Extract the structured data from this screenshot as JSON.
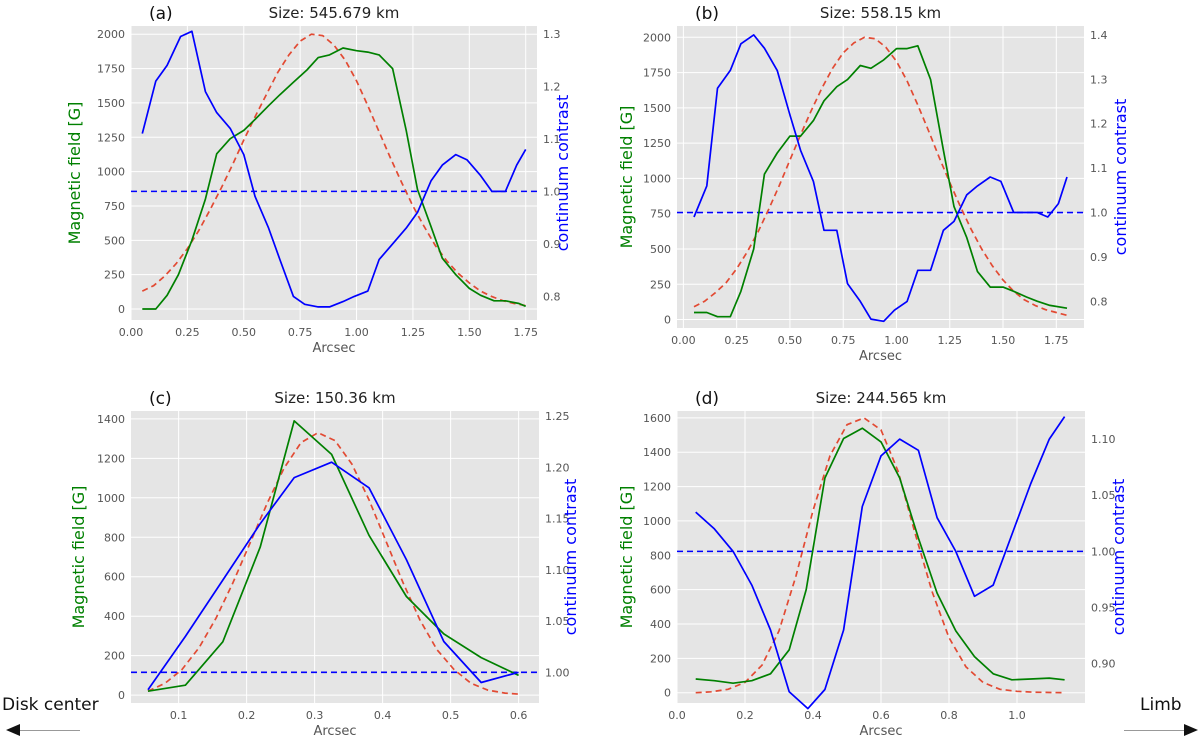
{
  "colors": {
    "magnetic": "#008000",
    "contrast": "#0000ff",
    "fit": "#e24a33",
    "reference": "#0000ff",
    "plot_bg": "#e5e5e5",
    "grid": "#ffffff"
  },
  "side_labels": {
    "left": "Disk center",
    "right": "Limb"
  },
  "chart_data": [
    {
      "panel_label": "(a)",
      "type": "line",
      "title": "Size: 545.679 km",
      "xlabel": "Arcsec",
      "ylabel_left": "Magnetic field [G]",
      "ylabel_right": "continuum contrast",
      "xlim": [
        0.0,
        1.8
      ],
      "ylim_left": [
        -80,
        2060
      ],
      "ylim_right": [
        0.755,
        1.315
      ],
      "xticks": [
        0.0,
        0.25,
        0.5,
        0.75,
        1.0,
        1.25,
        1.5,
        1.75
      ],
      "xtick_labels": [
        "0.00",
        "0.25",
        "0.50",
        "0.75",
        "1.00",
        "1.25",
        "1.50",
        "1.75"
      ],
      "yticks_left": [
        0,
        250,
        500,
        750,
        1000,
        1250,
        1500,
        1750,
        2000
      ],
      "yticks_right": [
        0.8,
        0.9,
        1.0,
        1.1,
        1.2,
        1.3
      ],
      "ytick_labels_right": [
        "0.8",
        "0.9",
        "1.0",
        "1.1",
        "1.2",
        "1.3"
      ],
      "reference_line": 1.0,
      "series": [
        {
          "axis": "left",
          "style": "solid",
          "color": "#008000",
          "x": [
            0.05,
            0.11,
            0.16,
            0.21,
            0.27,
            0.33,
            0.38,
            0.44,
            0.5,
            0.55,
            0.61,
            0.66,
            0.72,
            0.78,
            0.83,
            0.88,
            0.94,
            1.0,
            1.05,
            1.1,
            1.16,
            1.22,
            1.27,
            1.33,
            1.38,
            1.44,
            1.5,
            1.55,
            1.61,
            1.66,
            1.72,
            1.75
          ],
          "y": [
            0,
            0,
            100,
            250,
            500,
            800,
            1130,
            1240,
            1300,
            1380,
            1480,
            1560,
            1650,
            1740,
            1830,
            1850,
            1900,
            1880,
            1870,
            1850,
            1750,
            1300,
            870,
            600,
            370,
            250,
            150,
            100,
            60,
            60,
            40,
            20
          ]
        },
        {
          "axis": "left",
          "style": "dashed",
          "color": "#e24a33",
          "x": [
            0.05,
            0.1,
            0.15,
            0.2,
            0.25,
            0.3,
            0.35,
            0.4,
            0.45,
            0.5,
            0.55,
            0.6,
            0.65,
            0.7,
            0.75,
            0.8,
            0.85,
            0.9,
            0.95,
            1.0,
            1.05,
            1.1,
            1.15,
            1.2,
            1.25,
            1.3,
            1.35,
            1.4,
            1.45,
            1.5,
            1.55,
            1.6,
            1.65,
            1.7,
            1.75
          ],
          "y": [
            130,
            170,
            240,
            330,
            440,
            570,
            720,
            880,
            1050,
            1230,
            1400,
            1560,
            1720,
            1850,
            1950,
            2000,
            1990,
            1920,
            1810,
            1660,
            1480,
            1290,
            1100,
            920,
            750,
            600,
            460,
            350,
            260,
            190,
            130,
            90,
            60,
            40,
            25
          ]
        },
        {
          "axis": "right",
          "style": "solid",
          "color": "#0000ff",
          "x": [
            0.05,
            0.11,
            0.16,
            0.22,
            0.27,
            0.33,
            0.38,
            0.44,
            0.5,
            0.55,
            0.61,
            0.66,
            0.72,
            0.77,
            0.83,
            0.88,
            0.94,
            0.99,
            1.05,
            1.1,
            1.16,
            1.22,
            1.27,
            1.33,
            1.38,
            1.44,
            1.49,
            1.55,
            1.6,
            1.66,
            1.71,
            1.75
          ],
          "y": [
            1.11,
            1.21,
            1.24,
            1.295,
            1.305,
            1.19,
            1.15,
            1.12,
            1.07,
            0.99,
            0.93,
            0.87,
            0.8,
            0.785,
            0.78,
            0.78,
            0.79,
            0.8,
            0.81,
            0.87,
            0.9,
            0.93,
            0.96,
            1.02,
            1.05,
            1.07,
            1.06,
            1.03,
            1.0,
            1.0,
            1.05,
            1.08
          ]
        }
      ]
    },
    {
      "panel_label": "(b)",
      "type": "line",
      "title": "Size: 558.15 km",
      "xlabel": "Arcsec",
      "ylabel_left": "Magnetic field [G]",
      "ylabel_right": "continuum contrast",
      "xlim": [
        -0.03,
        1.88
      ],
      "ylim_left": [
        -60,
        2080
      ],
      "ylim_right": [
        0.74,
        1.42
      ],
      "xticks": [
        0.0,
        0.25,
        0.5,
        0.75,
        1.0,
        1.25,
        1.5,
        1.75
      ],
      "xtick_labels": [
        "0.00",
        "0.25",
        "0.50",
        "0.75",
        "1.00",
        "1.25",
        "1.50",
        "1.75"
      ],
      "yticks_left": [
        0,
        250,
        500,
        750,
        1000,
        1250,
        1500,
        1750,
        2000
      ],
      "yticks_right": [
        0.8,
        0.9,
        1.0,
        1.1,
        1.2,
        1.3,
        1.4
      ],
      "ytick_labels_right": [
        "0.8",
        "0.9",
        "1.0",
        "1.1",
        "1.2",
        "1.3",
        "1.4"
      ],
      "reference_line": 1.0,
      "series": [
        {
          "axis": "left",
          "style": "solid",
          "color": "#008000",
          "x": [
            0.05,
            0.11,
            0.16,
            0.22,
            0.27,
            0.33,
            0.38,
            0.44,
            0.5,
            0.55,
            0.61,
            0.66,
            0.72,
            0.77,
            0.83,
            0.88,
            0.94,
            1.0,
            1.05,
            1.1,
            1.16,
            1.22,
            1.27,
            1.33,
            1.38,
            1.44,
            1.5,
            1.55,
            1.61,
            1.66,
            1.72,
            1.8
          ],
          "y": [
            50,
            50,
            20,
            20,
            200,
            500,
            1030,
            1180,
            1300,
            1300,
            1410,
            1550,
            1650,
            1700,
            1800,
            1780,
            1840,
            1920,
            1920,
            1940,
            1700,
            1200,
            800,
            580,
            340,
            230,
            230,
            200,
            160,
            130,
            100,
            80
          ]
        },
        {
          "axis": "left",
          "style": "dashed",
          "color": "#e24a33",
          "x": [
            0.05,
            0.1,
            0.15,
            0.2,
            0.25,
            0.3,
            0.35,
            0.4,
            0.45,
            0.5,
            0.55,
            0.6,
            0.65,
            0.7,
            0.75,
            0.8,
            0.85,
            0.9,
            0.95,
            1.0,
            1.05,
            1.1,
            1.15,
            1.2,
            1.25,
            1.3,
            1.35,
            1.4,
            1.45,
            1.5,
            1.55,
            1.6,
            1.65,
            1.7,
            1.75,
            1.8
          ],
          "y": [
            90,
            130,
            190,
            260,
            360,
            480,
            620,
            780,
            950,
            1130,
            1310,
            1480,
            1640,
            1780,
            1890,
            1960,
            2000,
            1990,
            1930,
            1830,
            1690,
            1520,
            1340,
            1150,
            970,
            800,
            640,
            500,
            380,
            280,
            200,
            140,
            100,
            70,
            50,
            30
          ]
        },
        {
          "axis": "right",
          "style": "solid",
          "color": "#0000ff",
          "x": [
            0.05,
            0.11,
            0.16,
            0.22,
            0.27,
            0.33,
            0.38,
            0.44,
            0.5,
            0.55,
            0.61,
            0.66,
            0.72,
            0.77,
            0.83,
            0.88,
            0.94,
            0.99,
            1.05,
            1.1,
            1.16,
            1.22,
            1.27,
            1.33,
            1.38,
            1.44,
            1.49,
            1.55,
            1.6,
            1.66,
            1.71,
            1.76,
            1.8
          ],
          "y": [
            0.99,
            1.06,
            1.28,
            1.32,
            1.38,
            1.4,
            1.37,
            1.32,
            1.22,
            1.14,
            1.07,
            0.96,
            0.96,
            0.84,
            0.8,
            0.76,
            0.755,
            0.78,
            0.8,
            0.87,
            0.87,
            0.96,
            0.98,
            1.04,
            1.06,
            1.08,
            1.07,
            1.0,
            1.0,
            1.0,
            0.99,
            1.02,
            1.08
          ]
        }
      ]
    },
    {
      "panel_label": "(c)",
      "type": "line",
      "title": "Size: 150.36 km",
      "xlabel": "Arcsec",
      "ylabel_left": "Magnetic field [G]",
      "ylabel_right": "continuum contrast",
      "xlim": [
        0.03,
        0.63
      ],
      "ylim_left": [
        -40,
        1440
      ],
      "ylim_right": [
        0.97,
        1.255
      ],
      "xticks": [
        0.1,
        0.2,
        0.3,
        0.4,
        0.5,
        0.6
      ],
      "xtick_labels": [
        "0.1",
        "0.2",
        "0.3",
        "0.4",
        "0.5",
        "0.6"
      ],
      "yticks_left": [
        0,
        200,
        400,
        600,
        800,
        1000,
        1200,
        1400
      ],
      "yticks_right": [
        1.0,
        1.05,
        1.1,
        1.15,
        1.2,
        1.25
      ],
      "ytick_labels_right": [
        "1.00",
        "1.05",
        "1.10",
        "1.15",
        "1.20",
        "1.25"
      ],
      "reference_line": 1.0,
      "series": [
        {
          "axis": "left",
          "style": "solid",
          "color": "#008000",
          "x": [
            0.055,
            0.11,
            0.165,
            0.22,
            0.27,
            0.325,
            0.38,
            0.435,
            0.49,
            0.545,
            0.6
          ],
          "y": [
            20,
            50,
            270,
            750,
            1390,
            1220,
            810,
            500,
            310,
            190,
            100
          ]
        },
        {
          "axis": "left",
          "style": "dashed",
          "color": "#e24a33",
          "x": [
            0.055,
            0.08,
            0.105,
            0.13,
            0.155,
            0.18,
            0.205,
            0.23,
            0.255,
            0.28,
            0.305,
            0.33,
            0.355,
            0.38,
            0.405,
            0.43,
            0.455,
            0.48,
            0.505,
            0.53,
            0.555,
            0.58,
            0.6
          ],
          "y": [
            20,
            60,
            130,
            240,
            390,
            570,
            770,
            970,
            1150,
            1280,
            1330,
            1290,
            1170,
            990,
            780,
            570,
            380,
            230,
            130,
            60,
            25,
            10,
            5
          ]
        },
        {
          "axis": "right",
          "style": "solid",
          "color": "#0000ff",
          "x": [
            0.055,
            0.11,
            0.165,
            0.22,
            0.27,
            0.325,
            0.38,
            0.435,
            0.49,
            0.545,
            0.6
          ],
          "y": [
            0.983,
            1.035,
            1.09,
            1.145,
            1.19,
            1.205,
            1.18,
            1.11,
            1.03,
            0.99,
            1.0
          ]
        }
      ]
    },
    {
      "panel_label": "(d)",
      "type": "line",
      "title": "Size: 244.565 km",
      "xlabel": "Arcsec",
      "ylabel_left": "Magnetic field [G]",
      "ylabel_right": "continuum contrast",
      "xlim": [
        0.0,
        1.2
      ],
      "ylim_left": [
        -60,
        1640
      ],
      "ylim_right": [
        0.865,
        1.125
      ],
      "xticks": [
        0.0,
        0.2,
        0.4,
        0.6,
        0.8,
        1.0
      ],
      "xtick_labels": [
        "0.0",
        "0.2",
        "0.4",
        "0.6",
        "0.8",
        "1.0"
      ],
      "yticks_left": [
        0,
        200,
        400,
        600,
        800,
        1000,
        1200,
        1400,
        1600
      ],
      "yticks_right": [
        0.9,
        0.95,
        1.0,
        1.05,
        1.1
      ],
      "ytick_labels_right": [
        "0.90",
        "0.95",
        "1.00",
        "1.05",
        "1.10"
      ],
      "reference_line": 1.0,
      "series": [
        {
          "axis": "left",
          "style": "solid",
          "color": "#008000",
          "x": [
            0.055,
            0.11,
            0.165,
            0.22,
            0.275,
            0.33,
            0.38,
            0.435,
            0.49,
            0.545,
            0.6,
            0.655,
            0.71,
            0.765,
            0.82,
            0.875,
            0.93,
            0.985,
            1.04,
            1.095,
            1.14
          ],
          "y": [
            80,
            70,
            55,
            70,
            110,
            250,
            600,
            1250,
            1480,
            1540,
            1460,
            1250,
            900,
            580,
            360,
            210,
            110,
            75,
            80,
            85,
            75
          ]
        },
        {
          "axis": "left",
          "style": "dashed",
          "color": "#e24a33",
          "x": [
            0.055,
            0.1,
            0.15,
            0.2,
            0.25,
            0.3,
            0.35,
            0.4,
            0.45,
            0.5,
            0.55,
            0.6,
            0.65,
            0.7,
            0.75,
            0.8,
            0.85,
            0.9,
            0.95,
            1.0,
            1.05,
            1.1,
            1.14
          ],
          "y": [
            0,
            5,
            20,
            60,
            160,
            360,
            680,
            1060,
            1380,
            1560,
            1600,
            1530,
            1290,
            930,
            590,
            320,
            150,
            60,
            20,
            8,
            3,
            1,
            0
          ]
        },
        {
          "axis": "right",
          "style": "solid",
          "color": "#0000ff",
          "x": [
            0.055,
            0.11,
            0.165,
            0.22,
            0.275,
            0.33,
            0.385,
            0.435,
            0.49,
            0.545,
            0.6,
            0.655,
            0.71,
            0.765,
            0.82,
            0.875,
            0.93,
            0.985,
            1.04,
            1.095,
            1.14
          ],
          "y": [
            1.035,
            1.02,
            1.0,
            0.97,
            0.93,
            0.875,
            0.86,
            0.877,
            0.93,
            1.04,
            1.085,
            1.1,
            1.09,
            1.03,
            1.0,
            0.96,
            0.97,
            1.015,
            1.06,
            1.1,
            1.12
          ]
        }
      ]
    }
  ]
}
